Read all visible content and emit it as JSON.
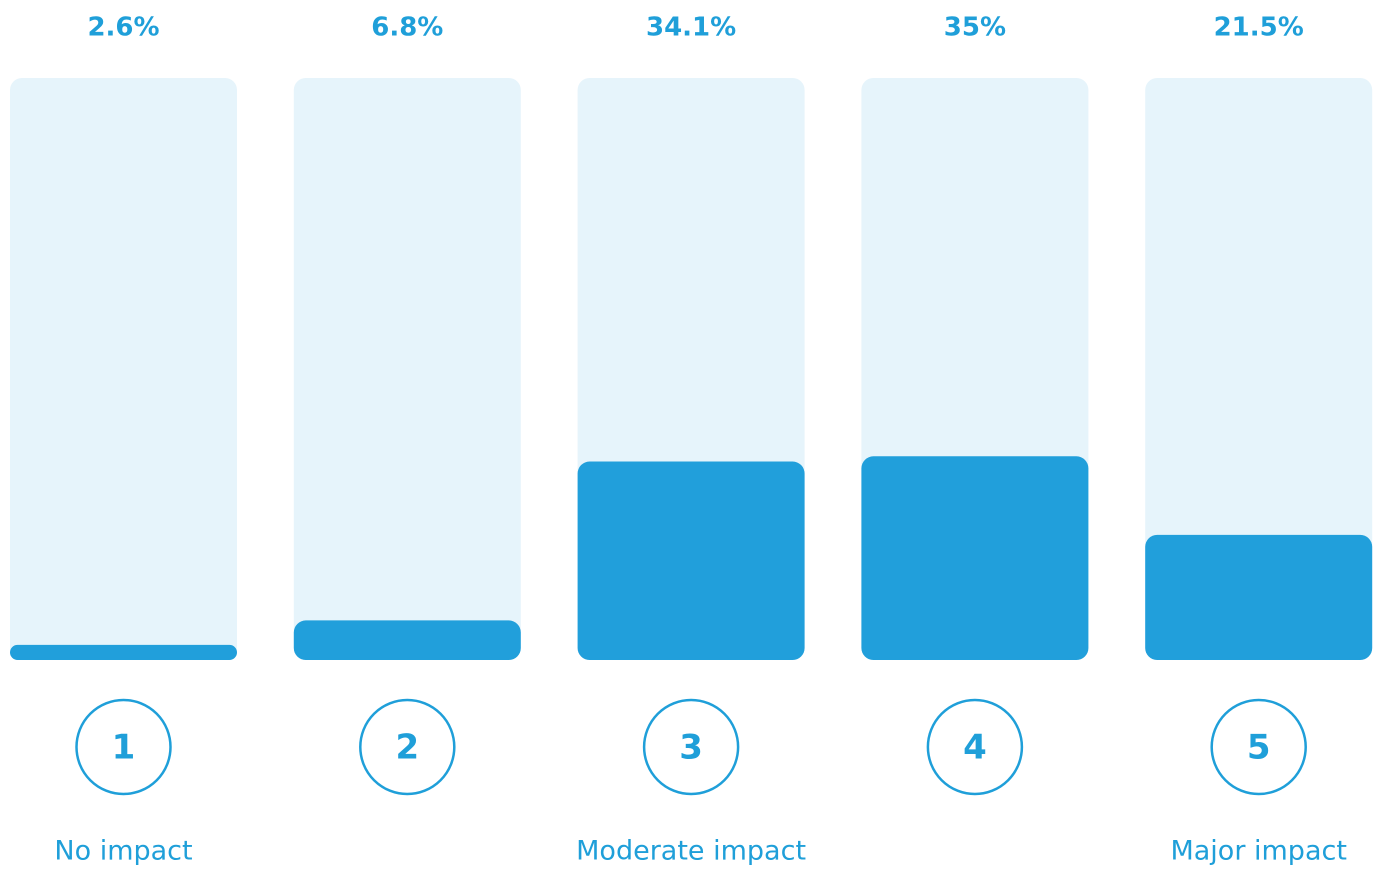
{
  "chart_data": {
    "type": "bar",
    "categories": [
      "1",
      "2",
      "3",
      "4",
      "5"
    ],
    "labels": [
      "No impact",
      null,
      "Moderate impact",
      null,
      "Major impact"
    ],
    "values": [
      2.6,
      6.8,
      34.1,
      35,
      21.5
    ],
    "value_labels": [
      "2.6%",
      "6.8%",
      "34.1%",
      "35%",
      "21.5%"
    ],
    "color": "#219fdb",
    "ylim": [
      0,
      100
    ]
  }
}
